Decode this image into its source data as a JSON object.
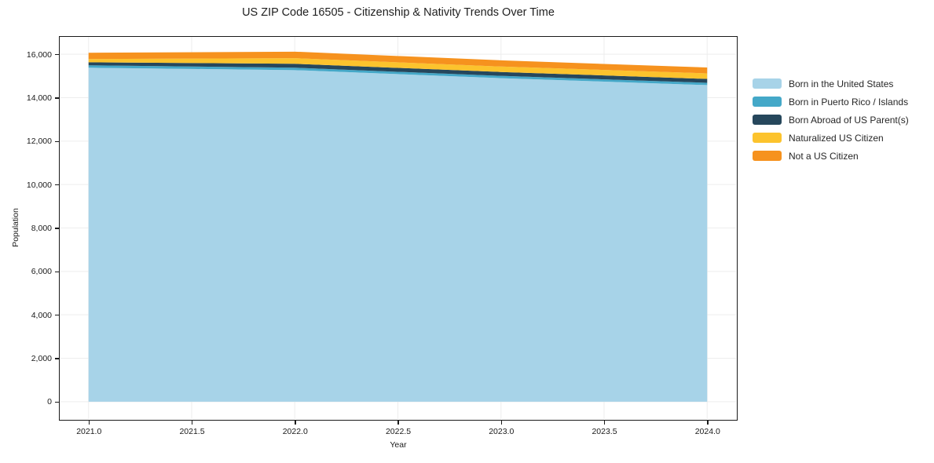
{
  "chart_data": {
    "type": "area",
    "stacked": true,
    "title": "US ZIP Code 16505 - Citizenship & Nativity Trends Over Time",
    "xlabel": "Year",
    "ylabel": "Population",
    "x": [
      2021,
      2022,
      2023,
      2024
    ],
    "series": [
      {
        "name": "Born in the United States",
        "color": "#A7D3E8",
        "values": [
          15380,
          15270,
          14900,
          14580
        ]
      },
      {
        "name": "Born in Puerto Rico / Islands",
        "color": "#44A8C8",
        "values": [
          110,
          110,
          105,
          105
        ]
      },
      {
        "name": "Born Abroad of US Parent(s)",
        "color": "#26475C",
        "values": [
          140,
          180,
          180,
          180
        ]
      },
      {
        "name": "Naturalized US Citizen",
        "color": "#FCC32D",
        "values": [
          150,
          260,
          250,
          255
        ]
      },
      {
        "name": "Not a US Citizen",
        "color": "#F6921E",
        "values": [
          290,
          300,
          285,
          270
        ]
      }
    ],
    "xlim": [
      2020.86,
      2024.14
    ],
    "ylim": [
      -800,
      16800
    ],
    "xticks": [
      {
        "value": 2021.0,
        "label": "2021.0"
      },
      {
        "value": 2021.5,
        "label": "2021.5"
      },
      {
        "value": 2022.0,
        "label": "2022.0"
      },
      {
        "value": 2022.5,
        "label": "2022.5"
      },
      {
        "value": 2023.0,
        "label": "2023.0"
      },
      {
        "value": 2023.5,
        "label": "2023.5"
      },
      {
        "value": 2024.0,
        "label": "2024.0"
      }
    ],
    "yticks": [
      {
        "value": 0,
        "label": "0"
      },
      {
        "value": 2000,
        "label": "2,000"
      },
      {
        "value": 4000,
        "label": "4,000"
      },
      {
        "value": 6000,
        "label": "6,000"
      },
      {
        "value": 8000,
        "label": "8,000"
      },
      {
        "value": 10000,
        "label": "10,000"
      },
      {
        "value": 12000,
        "label": "12,000"
      },
      {
        "value": 14000,
        "label": "14,000"
      },
      {
        "value": 16000,
        "label": "16,000"
      }
    ],
    "grid": true,
    "grid_color": "#ededed",
    "legend_position": "right"
  }
}
